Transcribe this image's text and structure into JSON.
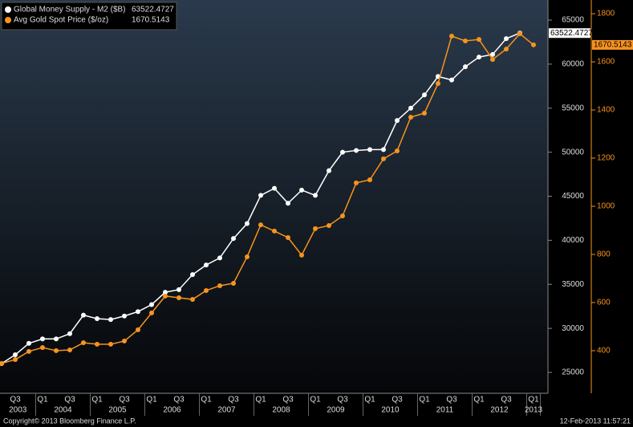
{
  "chart_data": {
    "type": "line",
    "categories": [
      null,
      "Q3",
      null,
      "Q1",
      null,
      "Q3",
      null,
      "Q1",
      null,
      "Q3",
      null,
      "Q1",
      null,
      "Q3",
      null,
      "Q1",
      null,
      "Q3",
      null,
      "Q1",
      null,
      "Q3",
      null,
      "Q1",
      null,
      "Q3",
      null,
      "Q1",
      null,
      "Q3",
      null,
      "Q1",
      null,
      "Q3",
      null,
      "Q1",
      null,
      "Q3",
      null,
      "Q1"
    ],
    "years": [
      "2003",
      "2004",
      "2005",
      "2006",
      "2007",
      "2008",
      "2009",
      "2010",
      "2011",
      "2012",
      "2013"
    ],
    "series": [
      {
        "name": "Global Money Supply - M2 ($B)",
        "color": "#ffffff",
        "values": [
          26000,
          27000,
          28300,
          28800,
          28800,
          29400,
          31500,
          31100,
          31000,
          31400,
          31900,
          32700,
          34100,
          34400,
          36100,
          37200,
          38000,
          40200,
          41900,
          45100,
          45900,
          44200,
          45700,
          45100,
          47900,
          50000,
          50200,
          50300,
          50300,
          53600,
          55000,
          56500,
          58600,
          58200,
          59700,
          60800,
          61100,
          62900,
          63522.4727,
          null
        ]
      },
      {
        "name": "Avg Gold Spot Price ($/oz)",
        "color": "#f7931e",
        "axis": "y2",
        "values": [
          347,
          363,
          397,
          413,
          400,
          403,
          433,
          427,
          427,
          440,
          487,
          557,
          627,
          620,
          613,
          650,
          670,
          680,
          790,
          923,
          897,
          870,
          797,
          907,
          920,
          960,
          1097,
          1110,
          1197,
          1230,
          1370,
          1387,
          1510,
          1707,
          1687,
          1693,
          1610,
          1653,
          1717,
          1670.5143
        ]
      }
    ],
    "ylim": [
      22630,
      67280
    ],
    "yticks": [
      25000,
      30000,
      35000,
      40000,
      45000,
      50000,
      55000,
      60000,
      65000
    ],
    "y2lim": [
      223,
      1857
    ],
    "y2ticks": [
      400,
      600,
      800,
      1000,
      1200,
      1400,
      1600,
      1800
    ]
  },
  "footer": {
    "copyright": "Copyright© 2013 Bloomberg Finance L.P.",
    "timestamp": "12-Feb-2013 11:57:21"
  }
}
